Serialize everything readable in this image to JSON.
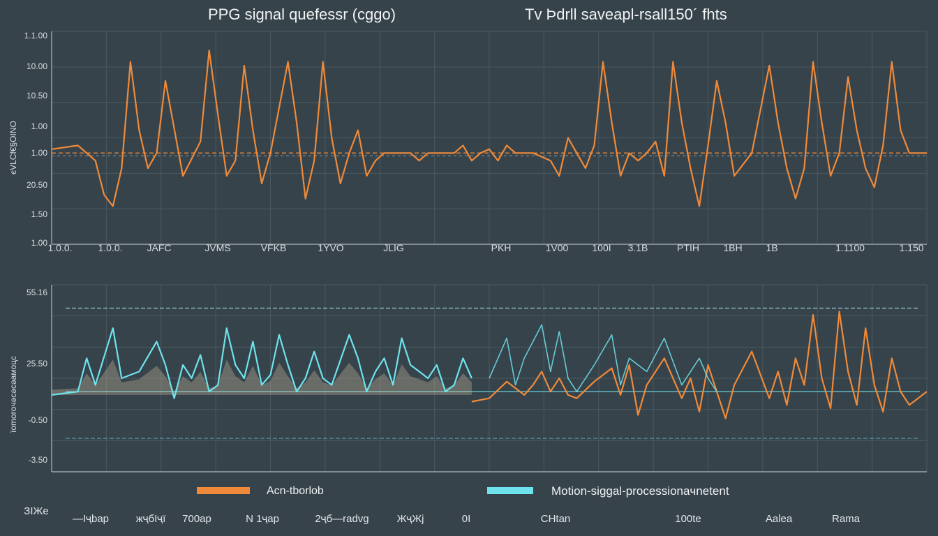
{
  "titles": {
    "left": "PPG signal quеfеsѕr (cgɡo)",
    "right": "Tv Þdrll saveapl-rsall150´ fhts"
  },
  "colors": {
    "background": "#36434b",
    "orange": "#f08a3a",
    "cyan": "#6fe3ec",
    "grid": "#4a5861",
    "axis": "#aeb8bf",
    "beige": "#c9b89a"
  },
  "chart_data": [
    {
      "type": "line",
      "panel": "top",
      "title": "PPG signal quеfеsѕr (cgɡo)",
      "ylabel": "єVLCf€§OІNO",
      "ytick_labels": [
        "1.1.00",
        "10.00",
        "10.50",
        "1.00",
        "1.00",
        "20.50",
        "1.50",
        "1.00"
      ],
      "xtick_labels": [
        "1.0.0.",
        "1.0.0. ",
        "JAFC",
        "JVМS",
        "VFKB",
        "1YVO",
        "JLIG",
        "PKН",
        "1V00",
        "100I",
        "3.1B",
        "PTIН",
        "1BН",
        "1B",
        "1.1100",
        "1.150"
      ],
      "ylim": [
        -1.2,
        1.6
      ],
      "series": [
        {
          "color": "orange",
          "x": [
            0,
            3,
            5,
            6,
            7,
            8,
            9,
            10,
            11,
            12,
            13,
            15,
            17,
            18,
            19,
            20,
            21,
            22,
            23,
            24,
            25,
            27,
            28,
            29,
            30,
            31,
            32,
            33,
            34,
            35,
            36,
            37,
            38,
            39,
            40,
            41,
            42,
            43,
            44,
            45,
            46,
            47,
            48,
            49,
            50,
            51,
            52,
            53,
            55,
            57,
            58,
            59,
            60,
            61,
            62,
            63,
            64,
            65,
            66,
            67,
            68,
            69,
            70,
            71,
            72,
            73,
            74,
            75,
            76,
            77,
            78,
            80,
            82,
            83,
            84,
            85,
            86,
            87,
            88,
            89,
            90,
            91,
            92,
            93,
            94,
            95,
            96,
            97,
            98,
            100
          ],
          "y": [
            0.05,
            0.1,
            -0.1,
            -0.55,
            -0.7,
            -0.2,
            1.2,
            0.3,
            -0.2,
            0.0,
            0.95,
            -0.3,
            0.15,
            1.35,
            0.5,
            -0.3,
            -0.1,
            1.15,
            0.3,
            -0.4,
            0.0,
            1.2,
            0.4,
            -0.6,
            -0.1,
            1.2,
            0.2,
            -0.4,
            0.0,
            0.3,
            -0.3,
            -0.1,
            0.0,
            0.0,
            0.0,
            0.0,
            -0.1,
            0.0,
            0.0,
            0.0,
            0.0,
            0.1,
            -0.1,
            0.0,
            0.05,
            -0.1,
            0.1,
            0.0,
            0.0,
            -0.1,
            -0.3,
            0.2,
            0.0,
            -0.2,
            0.1,
            1.2,
            0.4,
            -0.3,
            0.0,
            -0.1,
            0.0,
            0.15,
            -0.3,
            1.2,
            0.4,
            -0.2,
            -0.7,
            0.1,
            0.95,
            0.4,
            -0.3,
            0.0,
            1.15,
            0.4,
            -0.2,
            -0.6,
            -0.2,
            1.2,
            0.4,
            -0.3,
            0.0,
            1.0,
            0.3,
            -0.2,
            -0.45,
            0.1,
            1.2,
            0.3,
            0.0,
            0.0
          ]
        }
      ],
      "reference_line": 0.0
    },
    {
      "type": "line",
      "panel": "bottom",
      "ylabel": "їomoroчəсəсəамоцс",
      "ytick_labels": [
        "55.16",
        "25.50",
        "-0.50",
        "-3.50"
      ],
      "ylim": [
        -1.2,
        1.6
      ],
      "series": [
        {
          "name": "Acn-tborlob",
          "color": "orange",
          "x": [
            48,
            50,
            52,
            54,
            55,
            56,
            57,
            58,
            59,
            60,
            62,
            64,
            65,
            66,
            67,
            68,
            70,
            72,
            73,
            74,
            75,
            76,
            77,
            78,
            80,
            82,
            83,
            84,
            85,
            86,
            87,
            88,
            89,
            90,
            91,
            92,
            93,
            94,
            95,
            96,
            97,
            98,
            100
          ],
          "y": [
            -0.15,
            -0.1,
            0.15,
            -0.05,
            0.1,
            0.3,
            0.0,
            0.2,
            -0.05,
            -0.1,
            0.15,
            0.35,
            -0.05,
            0.4,
            -0.35,
            0.1,
            0.5,
            -0.1,
            0.2,
            -0.3,
            0.4,
            0.0,
            -0.4,
            0.1,
            0.6,
            -0.1,
            0.3,
            -0.2,
            0.5,
            0.1,
            1.15,
            0.2,
            -0.25,
            1.2,
            0.3,
            -0.2,
            0.95,
            0.1,
            -0.3,
            0.5,
            0.0,
            -0.2,
            0.0
          ]
        },
        {
          "name": "Motion-signal-processionjnetent",
          "color": "cyan",
          "x": [
            0,
            3,
            4,
            5,
            7,
            8,
            10,
            12,
            13,
            14,
            15,
            16,
            17,
            18,
            19,
            20,
            21,
            22,
            23,
            24,
            25,
            26,
            27,
            28,
            29,
            30,
            31,
            32,
            34,
            35,
            36,
            37,
            38,
            39,
            40,
            41,
            42,
            43,
            44,
            45,
            46,
            47,
            48
          ],
          "y": [
            -0.05,
            0.0,
            0.5,
            0.1,
            0.95,
            0.2,
            0.3,
            0.75,
            0.4,
            -0.1,
            0.4,
            0.2,
            0.55,
            0.0,
            0.1,
            0.95,
            0.4,
            0.2,
            0.75,
            0.1,
            0.25,
            0.85,
            0.4,
            0.0,
            0.2,
            0.6,
            0.2,
            0.1,
            0.85,
            0.5,
            0.0,
            0.3,
            0.5,
            0.1,
            0.8,
            0.4,
            0.3,
            0.2,
            0.4,
            0.0,
            0.1,
            0.5,
            0.2
          ]
        },
        {
          "color": "cyan",
          "x": [
            50,
            52,
            53,
            54,
            56,
            57,
            58,
            59,
            60,
            62,
            64,
            65,
            66,
            68,
            70,
            72,
            74,
            75,
            76
          ],
          "y": [
            0.2,
            0.8,
            0.1,
            0.5,
            1.0,
            0.3,
            0.9,
            0.2,
            0.0,
            0.4,
            0.85,
            0.1,
            0.5,
            0.3,
            0.8,
            0.1,
            0.5,
            0.2,
            0.0
          ]
        }
      ],
      "reference_lines": [
        1.25,
        0.0,
        -0.7
      ]
    }
  ],
  "legend": [
    {
      "label": "Acn-tborlob",
      "color": "orange"
    },
    {
      "label": "Motion-sigɡal-processionaчnetent",
      "color": "cyan"
    }
  ],
  "bottom_labels": [
    "ЗIЖe",
    "—Iҷbap",
    "жҷбIҷї",
    "700ap",
    "N 1ҷap",
    "2ҷб—radvg",
    "ЖҷЖј",
    "0I",
    "CHtan",
    "100te",
    "Aalea",
    "Rama"
  ]
}
